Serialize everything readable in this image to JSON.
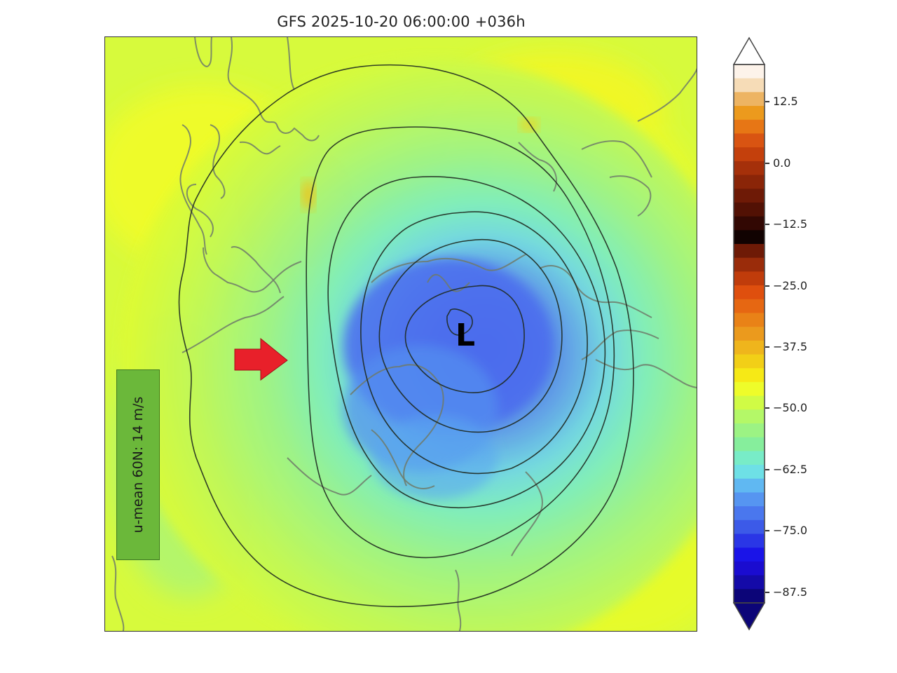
{
  "header": {
    "title": "GFS 2025-10-20 06:00:00 +036h"
  },
  "annotation": {
    "u_mean_label": "u-mean 60N: 14 m/s",
    "low_marker": "L",
    "arrow_color": "#e8202a"
  },
  "colorbar": {
    "ticks": [
      "12.5",
      "0.0",
      "−12.5",
      "−25.0",
      "−37.5",
      "−50.0",
      "−62.5",
      "−75.0",
      "−87.5"
    ],
    "tick_values": [
      12.5,
      0.0,
      -12.5,
      -25.0,
      -37.5,
      -50.0,
      -62.5,
      -75.0,
      -87.5
    ],
    "extend": "both",
    "colors_top_to_bottom": [
      "#fdf3ea",
      "#f6dcb7",
      "#edb463",
      "#ec9a1d",
      "#e77615",
      "#d95412",
      "#c4400c",
      "#a5300a",
      "#8a2508",
      "#6e1a06",
      "#521104",
      "#320803",
      "#110201",
      "#6e1a06",
      "#9a2c0a",
      "#c03c0b",
      "#df4f0e",
      "#e66712",
      "#e98217",
      "#eb9a1d",
      "#efb51c",
      "#f2cf17",
      "#f6e916",
      "#eefc2a",
      "#d0fb45",
      "#b4f868",
      "#9cf384",
      "#86ee9c",
      "#78ecc7",
      "#6ee0e6",
      "#60b8f2",
      "#5695f1",
      "#4a77ee",
      "#3c5ae8",
      "#2a36e6",
      "#1a14e8",
      "#1a0cd0",
      "#140aa8",
      "#0c0578"
    ]
  },
  "chart_data": {
    "type": "heatmap",
    "title": "GFS 2025-10-20 06:00:00 +036h",
    "projection": "north-polar stereographic",
    "field": "filled contours (colorbar) with overlaid black isolines",
    "colorbar_ticks": [
      12.5,
      0.0,
      -12.5,
      -25.0,
      -37.5,
      -50.0,
      -62.5,
      -75.0,
      -87.5
    ],
    "colorbar_range": [
      -93.75,
      18.75
    ],
    "annotations": [
      "L (low center near pole)",
      "u-mean 60N: 14 m/s",
      "red arrow pointing east at Europe/Atlantic coast"
    ],
    "contour_count": 7,
    "min_region_value_approx": -75,
    "background_value_approx": -45
  }
}
